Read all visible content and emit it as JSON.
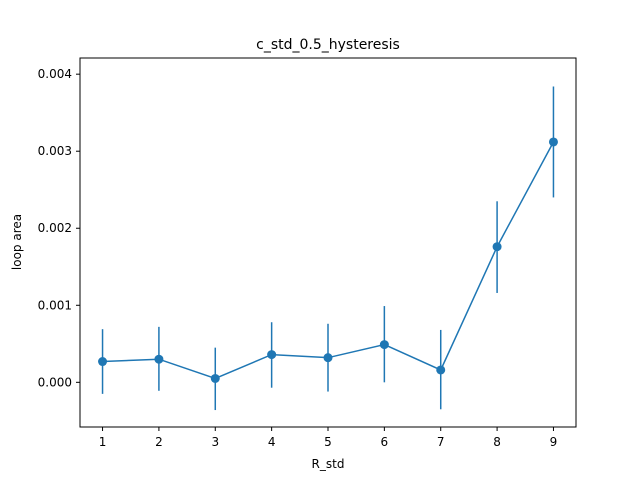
{
  "chart_data": {
    "type": "line",
    "title": "c_std_0.5_hysteresis",
    "xlabel": "R_std",
    "ylabel": "loop area",
    "x": [
      1,
      2,
      3,
      4,
      5,
      6,
      7,
      8,
      9
    ],
    "series": [
      {
        "values": [
          0.00027,
          0.0003,
          5e-05,
          0.00036,
          0.00032,
          0.00049,
          0.00016,
          0.00176,
          0.00312
        ],
        "err_low": [
          -0.00015,
          -0.00011,
          -0.00036,
          -7e-05,
          -0.00012,
          0.0,
          -0.00035,
          0.00116,
          0.0024
        ],
        "err_high": [
          0.00069,
          0.00072,
          0.00045,
          0.00078,
          0.00076,
          0.00099,
          0.00068,
          0.00235,
          0.00384
        ],
        "color": "#1f77b4",
        "marker": "circle"
      }
    ],
    "xlim": [
      0.6,
      9.4
    ],
    "ylim": [
      -0.00058,
      0.00421
    ],
    "xticks": [
      1,
      2,
      3,
      4,
      5,
      6,
      7,
      8,
      9
    ],
    "xtick_labels": [
      "1",
      "2",
      "3",
      "4",
      "5",
      "6",
      "7",
      "8",
      "9"
    ],
    "yticks": [
      0.0,
      0.001,
      0.002,
      0.003,
      0.004
    ],
    "ytick_labels": [
      "0.000",
      "0.001",
      "0.002",
      "0.003",
      "0.004"
    ],
    "grid": false,
    "legend": "none"
  }
}
